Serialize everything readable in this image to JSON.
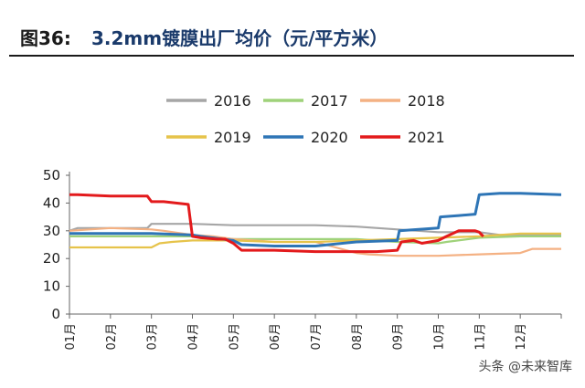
{
  "figure": {
    "prefix": "图36:",
    "title": "3.2mm镀膜出厂均价（元/平方米）"
  },
  "watermark": "头条 @未来智库",
  "colors": {
    "2016": "#a6a6a6",
    "2017": "#9fd27a",
    "2018": "#f4b183",
    "2019": "#e6c34a",
    "2020": "#2e75b6",
    "2021": "#e31a1c"
  },
  "chart_data": {
    "type": "line",
    "xlabel": "",
    "ylabel": "",
    "ylim": [
      0,
      50
    ],
    "yticks": [
      0,
      10,
      20,
      30,
      40,
      50
    ],
    "xticks": [
      "01月",
      "02月",
      "03月",
      "04月",
      "05月",
      "06月",
      "07月",
      "08月",
      "09月",
      "10月",
      "11月",
      "12月"
    ],
    "xlim": [
      1,
      13
    ],
    "grid": false,
    "legend_position": "top",
    "series": [
      {
        "name": "2016",
        "x": [
          1.0,
          1.2,
          2.0,
          2.9,
          3.0,
          4.0,
          5.0,
          6.0,
          7.0,
          8.0,
          9.0,
          9.5,
          10.0,
          11.0,
          11.5,
          12.0,
          13.0
        ],
        "y": [
          30,
          31,
          31,
          31,
          32.5,
          32.5,
          32,
          32,
          32,
          31.5,
          30.5,
          30,
          29.5,
          29.5,
          28.5,
          28.5,
          28.5
        ]
      },
      {
        "name": "2017",
        "x": [
          1.0,
          2.0,
          3.0,
          4.0,
          4.2,
          5.0,
          6.0,
          7.0,
          8.0,
          9.0,
          10.0,
          10.2,
          11.0,
          12.0,
          13.0
        ],
        "y": [
          28,
          28,
          28,
          28,
          28,
          27,
          27,
          27,
          27,
          26,
          25.5,
          26,
          27.5,
          28,
          28
        ]
      },
      {
        "name": "2018",
        "x": [
          1.0,
          1.5,
          2.0,
          3.0,
          3.3,
          4.0,
          4.5,
          5.0,
          6.0,
          7.0,
          8.0,
          8.3,
          9.0,
          10.0,
          11.0,
          12.0,
          12.3,
          13.0
        ],
        "y": [
          30,
          30.5,
          31,
          30.5,
          30,
          28.5,
          28,
          27,
          26,
          26,
          22,
          21.5,
          21,
          21,
          21.5,
          22,
          23.5,
          23.5
        ]
      },
      {
        "name": "2019",
        "x": [
          1.0,
          2.0,
          3.0,
          3.2,
          3.5,
          4.0,
          5.0,
          6.0,
          7.0,
          8.0,
          9.0,
          10.0,
          11.0,
          12.0,
          13.0
        ],
        "y": [
          24,
          24,
          24,
          25.5,
          26,
          26.5,
          26.5,
          26,
          26,
          26.5,
          27,
          27.5,
          28,
          29,
          29
        ]
      },
      {
        "name": "2020",
        "x": [
          1.0,
          2.0,
          3.0,
          4.0,
          4.2,
          5.0,
          5.2,
          6.0,
          6.5,
          7.0,
          8.0,
          9.0,
          9.05,
          10.0,
          10.05,
          10.5,
          10.9,
          11.0,
          11.5,
          12.0,
          13.0
        ],
        "y": [
          29,
          29,
          29,
          28.5,
          28,
          26.5,
          25,
          24.5,
          24.5,
          24.5,
          26,
          26.5,
          30,
          31,
          35,
          35.5,
          36,
          43,
          43.5,
          43.5,
          43
        ]
      },
      {
        "name": "2021",
        "x": [
          1.0,
          1.2,
          2.0,
          2.9,
          3.0,
          3.3,
          3.9,
          4.0,
          4.2,
          4.6,
          4.8,
          5.0,
          5.2,
          6.0,
          7.0,
          8.0,
          8.5,
          9.0,
          9.1,
          9.4,
          9.6,
          10.0,
          10.2,
          10.5,
          10.9,
          11.0,
          11.1
        ],
        "y": [
          43,
          43,
          42.5,
          42.5,
          40.5,
          40.5,
          39.5,
          28,
          27.5,
          27,
          27,
          25.5,
          23,
          23,
          22.5,
          22.5,
          22.5,
          23,
          26,
          26.5,
          25.5,
          26.5,
          28,
          30,
          30,
          29.5,
          28
        ]
      }
    ]
  }
}
